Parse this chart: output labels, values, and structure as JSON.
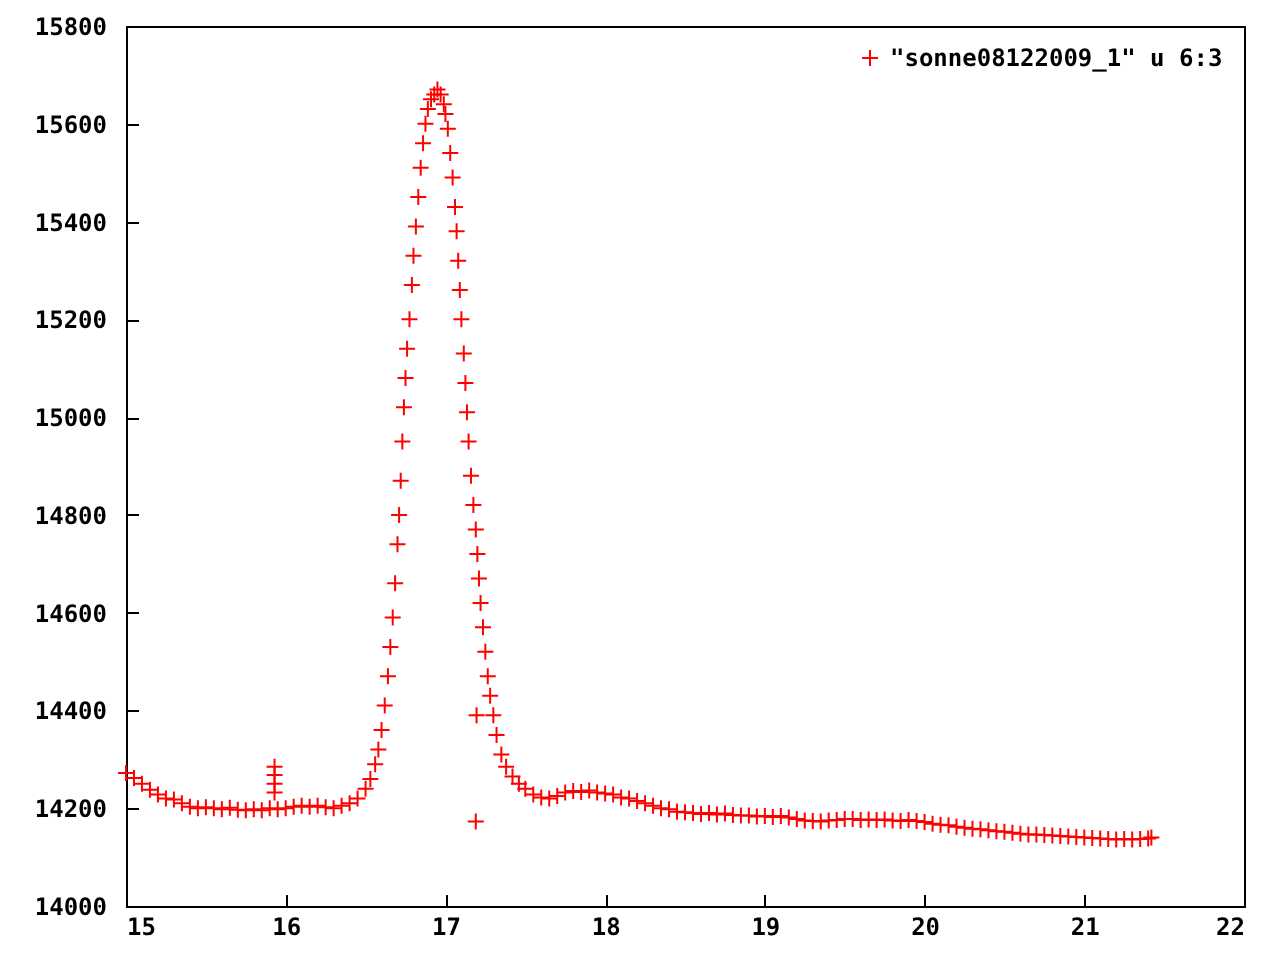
{
  "chart_data": {
    "type": "scatter",
    "series": [
      {
        "name": "\"sonne08122009_1\" u 6:3",
        "color": "#ff0000",
        "x": [
          15.0,
          15.05,
          15.1,
          15.15,
          15.2,
          15.25,
          15.3,
          15.35,
          15.4,
          15.45,
          15.5,
          15.55,
          15.6,
          15.65,
          15.7,
          15.75,
          15.8,
          15.85,
          15.9,
          15.93,
          15.93,
          15.93,
          15.93,
          15.95,
          16.0,
          16.05,
          16.1,
          16.15,
          16.2,
          16.25,
          16.3,
          16.35,
          16.4,
          16.45,
          16.5,
          16.53,
          16.56,
          16.58,
          16.6,
          16.62,
          16.64,
          16.655,
          16.67,
          16.685,
          16.7,
          16.71,
          16.72,
          16.73,
          16.74,
          16.75,
          16.76,
          16.775,
          16.79,
          16.8,
          16.815,
          16.83,
          16.845,
          16.86,
          16.875,
          16.89,
          16.91,
          16.93,
          16.95,
          16.97,
          16.99,
          17.0,
          17.015,
          17.03,
          17.045,
          17.06,
          17.07,
          17.08,
          17.09,
          17.1,
          17.115,
          17.125,
          17.135,
          17.145,
          17.16,
          17.175,
          17.19,
          17.19,
          17.195,
          17.2,
          17.21,
          17.22,
          17.235,
          17.25,
          17.265,
          17.28,
          17.3,
          17.32,
          17.35,
          17.38,
          17.42,
          17.46,
          17.5,
          17.55,
          17.6,
          17.65,
          17.7,
          17.75,
          17.8,
          17.85,
          17.9,
          17.95,
          18.0,
          18.05,
          18.1,
          18.15,
          18.2,
          18.25,
          18.3,
          18.35,
          18.4,
          18.45,
          18.5,
          18.55,
          18.6,
          18.65,
          18.7,
          18.75,
          18.8,
          18.85,
          18.9,
          18.95,
          19.0,
          19.05,
          19.1,
          19.15,
          19.2,
          19.25,
          19.3,
          19.35,
          19.4,
          19.45,
          19.5,
          19.55,
          19.6,
          19.65,
          19.7,
          19.75,
          19.8,
          19.85,
          19.9,
          19.95,
          20.0,
          20.05,
          20.1,
          20.15,
          20.2,
          20.25,
          20.3,
          20.35,
          20.4,
          20.45,
          20.5,
          20.55,
          20.6,
          20.65,
          20.7,
          20.75,
          20.8,
          20.85,
          20.9,
          20.95,
          21.0,
          21.05,
          21.1,
          21.15,
          21.2,
          21.25,
          21.3,
          21.35,
          21.4,
          21.42
        ],
        "values": [
          14272,
          14262,
          14250,
          14238,
          14228,
          14220,
          14218,
          14210,
          14203,
          14200,
          14202,
          14200,
          14198,
          14201,
          14197,
          14196,
          14198,
          14196,
          14200,
          14285,
          14268,
          14250,
          14232,
          14198,
          14200,
          14203,
          14205,
          14203,
          14205,
          14202,
          14200,
          14205,
          14210,
          14220,
          14240,
          14260,
          14290,
          14320,
          14360,
          14410,
          14470,
          14530,
          14590,
          14660,
          14740,
          14800,
          14870,
          14950,
          15020,
          15080,
          15140,
          15200,
          15270,
          15330,
          15390,
          15450,
          15510,
          15560,
          15600,
          15630,
          15650,
          15660,
          15670,
          15660,
          15640,
          15620,
          15590,
          15540,
          15490,
          15430,
          15380,
          15320,
          15260,
          15200,
          15130,
          15070,
          15010,
          14950,
          14880,
          14820,
          14770,
          14173,
          14390,
          14720,
          14670,
          14620,
          14570,
          14520,
          14470,
          14430,
          14390,
          14350,
          14310,
          14285,
          14265,
          14250,
          14240,
          14228,
          14222,
          14220,
          14225,
          14232,
          14235,
          14233,
          14236,
          14232,
          14230,
          14228,
          14222,
          14220,
          14215,
          14210,
          14205,
          14200,
          14198,
          14193,
          14192,
          14190,
          14188,
          14190,
          14187,
          14189,
          14186,
          14185,
          14185,
          14183,
          14184,
          14182,
          14184,
          14181,
          14178,
          14175,
          14174,
          14173,
          14175,
          14176,
          14178,
          14178,
          14176,
          14177,
          14176,
          14177,
          14175,
          14174,
          14176,
          14174,
          14172,
          14168,
          14166,
          14165,
          14162,
          14160,
          14158,
          14157,
          14155,
          14153,
          14152,
          14150,
          14148,
          14146,
          14146,
          14145,
          14144,
          14143,
          14142,
          14141,
          14140,
          14139,
          14138,
          14137,
          14136,
          14137,
          14136,
          14137,
          14138,
          14140
        ]
      }
    ],
    "xlim": [
      15,
      22
    ],
    "ylim": [
      14000,
      15800
    ],
    "xticks": [
      15,
      16,
      17,
      18,
      19,
      20,
      21,
      22
    ],
    "yticks": [
      14000,
      14200,
      14400,
      14600,
      14800,
      15000,
      15200,
      15400,
      15600,
      15800
    ],
    "grid": false,
    "legend": "top right",
    "marker": "cross"
  }
}
